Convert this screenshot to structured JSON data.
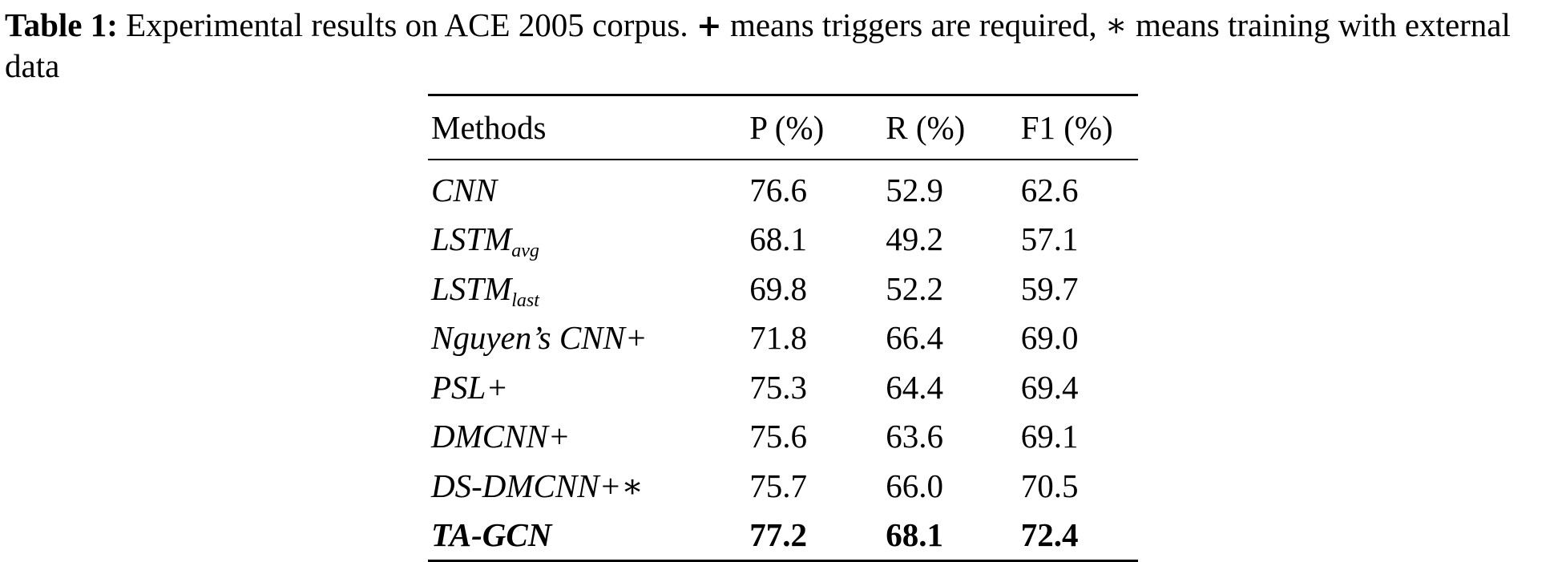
{
  "caption": {
    "label": "Table 1:",
    "text_1": " Experimental results on ACE 2005 corpus. ",
    "plus_symbol": "+",
    "text_2": " means triggers are required, ",
    "star_symbol": "∗",
    "text_3": " means training with external data"
  },
  "table": {
    "headers": {
      "method": "Methods",
      "p": "P (%)",
      "r": "R (%)",
      "f1": "F1 (%)"
    },
    "rows": [
      {
        "method": "CNN",
        "sub": "",
        "p": "76.6",
        "r": "52.9",
        "f1": "62.6"
      },
      {
        "method": "LSTM",
        "sub": "avg",
        "p": "68.1",
        "r": "49.2",
        "f1": "57.1"
      },
      {
        "method": "LSTM",
        "sub": "last",
        "p": "69.8",
        "r": "52.2",
        "f1": "59.7"
      },
      {
        "method": "Nguyen’s CNN+",
        "sub": "",
        "p": "71.8",
        "r": "66.4",
        "f1": "69.0"
      },
      {
        "method": "PSL+",
        "sub": "",
        "p": "75.3",
        "r": "64.4",
        "f1": "69.4"
      },
      {
        "method": "DMCNN+",
        "sub": "",
        "p": "75.6",
        "r": "63.6",
        "f1": "69.1"
      },
      {
        "method": "DS-DMCNN+∗",
        "sub": "",
        "p": "75.7",
        "r": "66.0",
        "f1": "70.5"
      },
      {
        "method": "TA-GCN",
        "sub": "",
        "p": "77.2",
        "r": "68.1",
        "f1": "72.4"
      }
    ]
  }
}
